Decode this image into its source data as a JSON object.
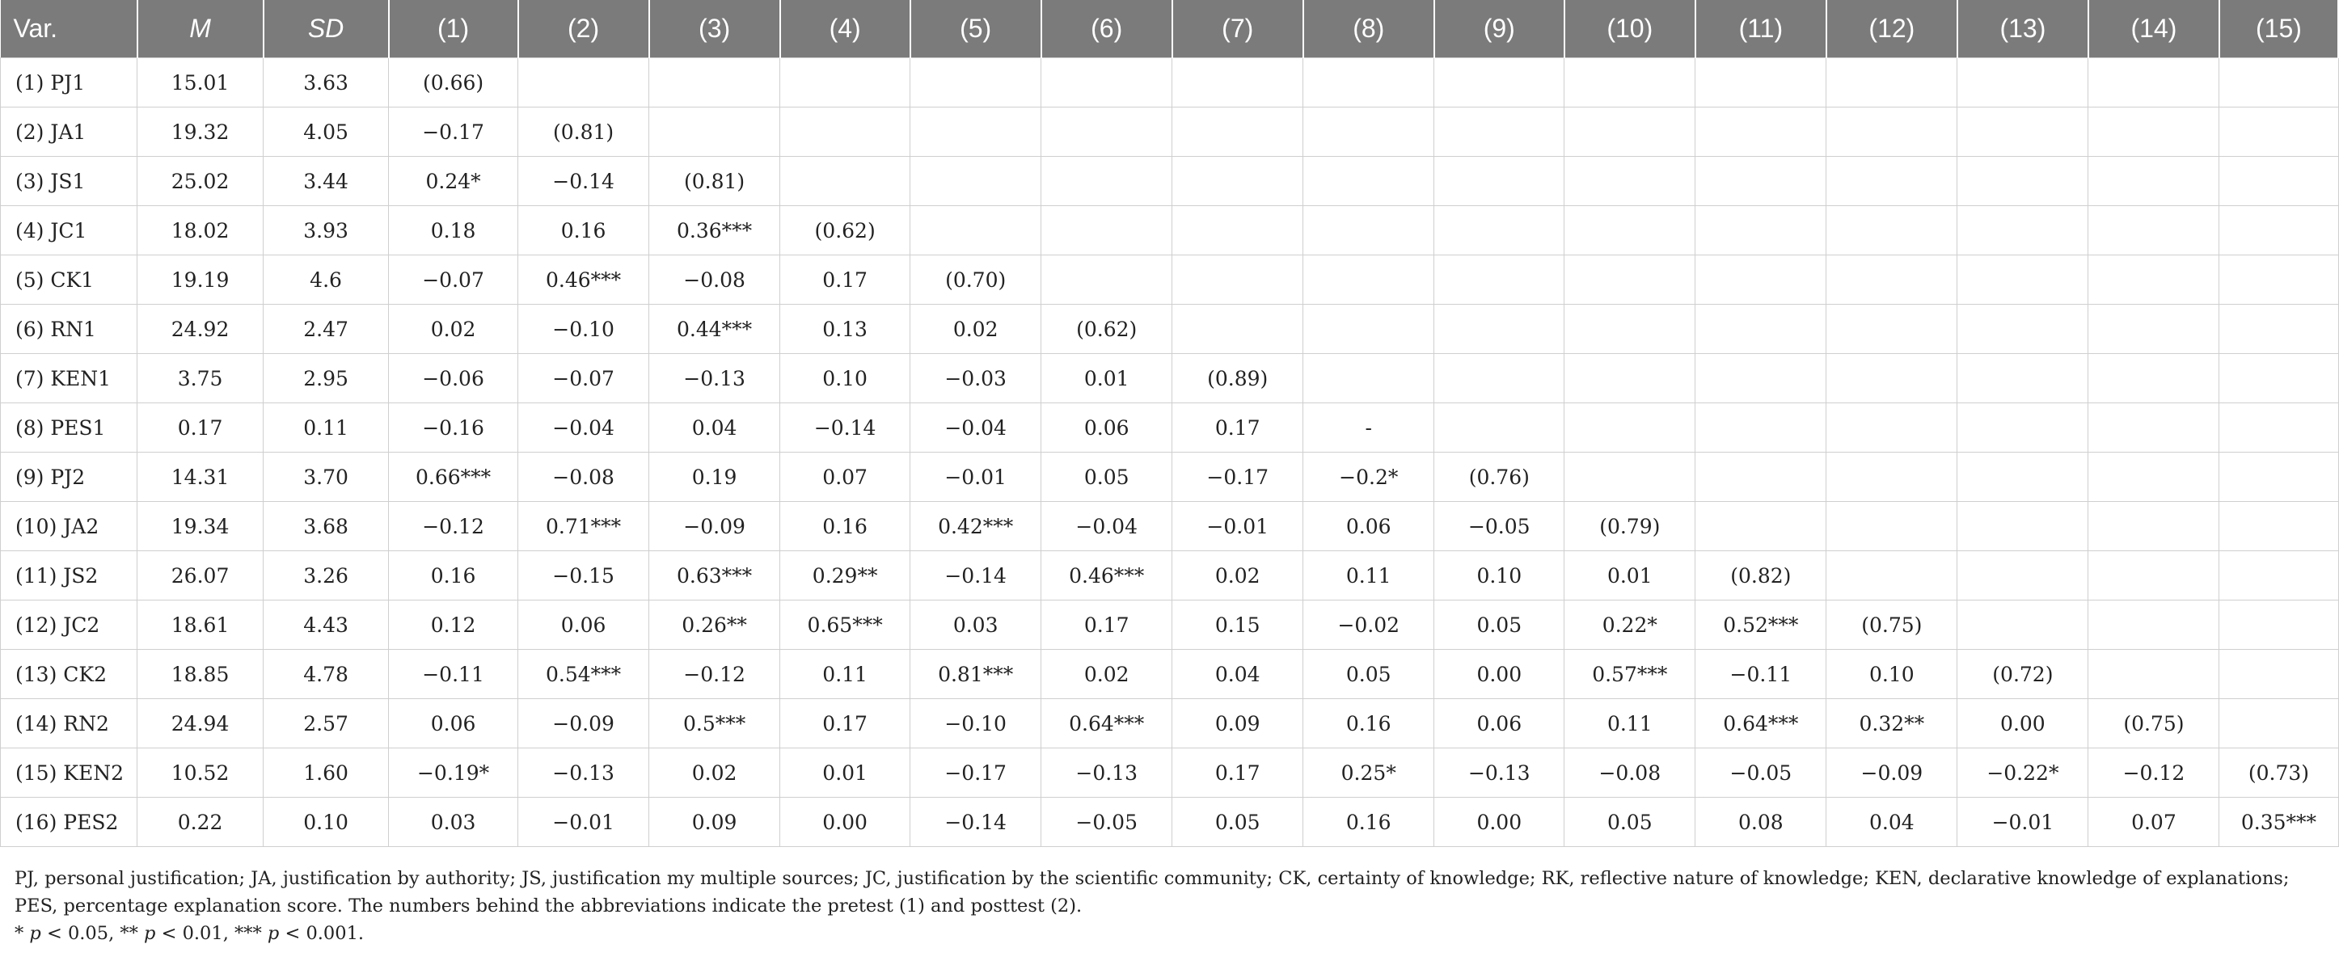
{
  "table": {
    "headers": [
      "Var.",
      "M",
      "SD",
      "(1)",
      "(2)",
      "(3)",
      "(4)",
      "(5)",
      "(6)",
      "(7)",
      "(8)",
      "(9)",
      "(10)",
      "(11)",
      "(12)",
      "(13)",
      "(14)",
      "(15)"
    ],
    "rows": [
      [
        "(1) PJ1",
        "15.01",
        "3.63",
        "(0.66)",
        "",
        "",
        "",
        "",
        "",
        "",
        "",
        "",
        "",
        "",
        "",
        "",
        "",
        ""
      ],
      [
        "(2) JA1",
        "19.32",
        "4.05",
        "−0.17",
        "(0.81)",
        "",
        "",
        "",
        "",
        "",
        "",
        "",
        "",
        "",
        "",
        "",
        "",
        ""
      ],
      [
        "(3) JS1",
        "25.02",
        "3.44",
        "0.24*",
        "−0.14",
        "(0.81)",
        "",
        "",
        "",
        "",
        "",
        "",
        "",
        "",
        "",
        "",
        "",
        ""
      ],
      [
        "(4) JC1",
        "18.02",
        "3.93",
        "0.18",
        "0.16",
        "0.36***",
        "(0.62)",
        "",
        "",
        "",
        "",
        "",
        "",
        "",
        "",
        "",
        "",
        ""
      ],
      [
        "(5) CK1",
        "19.19",
        "4.6",
        "−0.07",
        "0.46***",
        "−0.08",
        "0.17",
        "(0.70)",
        "",
        "",
        "",
        "",
        "",
        "",
        "",
        "",
        "",
        ""
      ],
      [
        "(6) RN1",
        "24.92",
        "2.47",
        "0.02",
        "−0.10",
        "0.44***",
        "0.13",
        "0.02",
        "(0.62)",
        "",
        "",
        "",
        "",
        "",
        "",
        "",
        "",
        ""
      ],
      [
        "(7) KEN1",
        "3.75",
        "2.95",
        "−0.06",
        "−0.07",
        "−0.13",
        "0.10",
        "−0.03",
        "0.01",
        "(0.89)",
        "",
        "",
        "",
        "",
        "",
        "",
        "",
        ""
      ],
      [
        "(8) PES1",
        "0.17",
        "0.11",
        "−0.16",
        "−0.04",
        "0.04",
        "−0.14",
        "−0.04",
        "0.06",
        "0.17",
        "-",
        "",
        "",
        "",
        "",
        "",
        "",
        ""
      ],
      [
        "(9) PJ2",
        "14.31",
        "3.70",
        "0.66***",
        "−0.08",
        "0.19",
        "0.07",
        "−0.01",
        "0.05",
        "−0.17",
        "−0.2*",
        "(0.76)",
        "",
        "",
        "",
        "",
        "",
        ""
      ],
      [
        "(10) JA2",
        "19.34",
        "3.68",
        "−0.12",
        "0.71***",
        "−0.09",
        "0.16",
        "0.42***",
        "−0.04",
        "−0.01",
        "0.06",
        "−0.05",
        "(0.79)",
        "",
        "",
        "",
        "",
        ""
      ],
      [
        "(11) JS2",
        "26.07",
        "3.26",
        "0.16",
        "−0.15",
        "0.63***",
        "0.29**",
        "−0.14",
        "0.46***",
        "0.02",
        "0.11",
        "0.10",
        "0.01",
        "(0.82)",
        "",
        "",
        "",
        ""
      ],
      [
        "(12) JC2",
        "18.61",
        "4.43",
        "0.12",
        "0.06",
        "0.26**",
        "0.65***",
        "0.03",
        "0.17",
        "0.15",
        "−0.02",
        "0.05",
        "0.22*",
        "0.52***",
        "(0.75)",
        "",
        "",
        ""
      ],
      [
        "(13) CK2",
        "18.85",
        "4.78",
        "−0.11",
        "0.54***",
        "−0.12",
        "0.11",
        "0.81***",
        "0.02",
        "0.04",
        "0.05",
        "0.00",
        "0.57***",
        "−0.11",
        "0.10",
        "(0.72)",
        "",
        ""
      ],
      [
        "(14) RN2",
        "24.94",
        "2.57",
        "0.06",
        "−0.09",
        "0.5***",
        "0.17",
        "−0.10",
        "0.64***",
        "0.09",
        "0.16",
        "0.06",
        "0.11",
        "0.64***",
        "0.32**",
        "0.00",
        "(0.75)",
        ""
      ],
      [
        "(15) KEN2",
        "10.52",
        "1.60",
        "−0.19*",
        "−0.13",
        "0.02",
        "0.01",
        "−0.17",
        "−0.13",
        "0.17",
        "0.25*",
        "−0.13",
        "−0.08",
        "−0.05",
        "−0.09",
        "−0.22*",
        "−0.12",
        "(0.73)"
      ],
      [
        "(16) PES2",
        "0.22",
        "0.10",
        "0.03",
        "−0.01",
        "0.09",
        "0.00",
        "−0.14",
        "−0.05",
        "0.05",
        "0.16",
        "0.00",
        "0.05",
        "0.08",
        "0.04",
        "−0.01",
        "0.07",
        "0.35***"
      ]
    ]
  },
  "notes": {
    "abbreviations": "PJ, personal justification; JA, justification by authority; JS, justification my multiple sources; JC, justification by the scientific community; CK, certainty of knowledge; RK, reflective nature of knowledge; KEN, declarative knowledge of explanations; PES, percentage explanation score. The numbers behind the abbreviations indicate the pretest (1) and posttest (2).",
    "sig_1_star": "* ",
    "sig_1_p": "p",
    "sig_1_rest": " < 0.05, ** ",
    "sig_2_p": "p",
    "sig_2_rest": " < 0.01, *** ",
    "sig_3_p": "p",
    "sig_3_rest": " < 0.001."
  }
}
